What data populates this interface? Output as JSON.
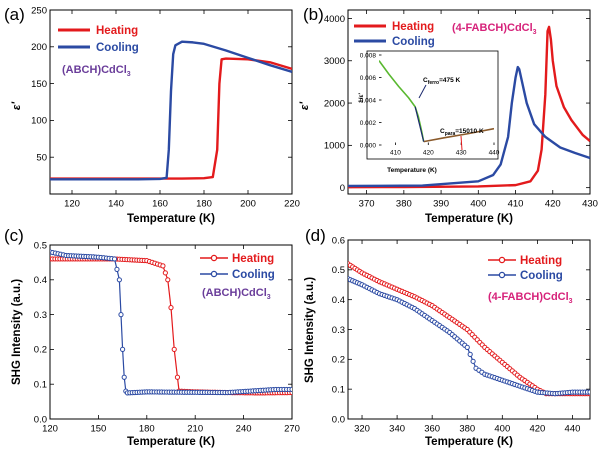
{
  "colors": {
    "heating": "#e31a1c",
    "cooling": "#2b4aa3",
    "annotation_a": "#6a3d9a",
    "annotation_b": "#d6227a",
    "inset_green": "#59b830",
    "inset_brown": "#8a5a2b",
    "inset_navy": "#1c2a6e"
  },
  "panels": {
    "a": {
      "label": "(a)",
      "xlabel": "Temperature (K)",
      "ylabel": "ε'",
      "annotation": {
        "pre": "(ABCH)CdCl",
        "sub": "3"
      }
    },
    "b": {
      "label": "(b)",
      "xlabel": "Temperature (K)",
      "ylabel": "ε'",
      "annotation": {
        "pre": "(4-FABCH)CdCl",
        "sub": "3"
      }
    },
    "c": {
      "label": "(c)",
      "xlabel": "Temperature (K)",
      "ylabel": "SHG Intensity (a.u.)",
      "annotation": {
        "pre": "(ABCH)CdCl",
        "sub": "3"
      }
    },
    "d": {
      "label": "(d)",
      "xlabel": "Temperature (K)",
      "ylabel": "SHG Intensity (a.u.)",
      "annotation": {
        "pre": "(4-FABCH)CdCl",
        "sub": "3"
      }
    }
  },
  "inset": {
    "xlabel": "Temperature (K)",
    "ylabel": "1/ε'",
    "ferro": {
      "pre": "C",
      "sub": "ferro",
      "post": "=475 K"
    },
    "para": {
      "pre": "C",
      "sub": "para",
      "post": "=15010 K"
    }
  },
  "chart_data": [
    {
      "id": "a",
      "type": "line",
      "xlim": [
        110,
        220
      ],
      "ylim": [
        0,
        250
      ],
      "xticks": [
        120,
        140,
        160,
        180,
        200,
        220
      ],
      "yticks": [
        50,
        100,
        150,
        200,
        250
      ],
      "legend": "top-left",
      "series": [
        {
          "name": "Heating",
          "color_key": "heating",
          "x": [
            110,
            150,
            170,
            180,
            184,
            186,
            187,
            188,
            190,
            200,
            210,
            220
          ],
          "y": [
            21,
            21,
            21,
            21.5,
            23,
            60,
            150,
            183,
            184,
            183,
            179,
            170
          ]
        },
        {
          "name": "Cooling",
          "color_key": "cooling",
          "x": [
            110,
            150,
            160,
            163,
            164,
            165,
            166,
            167,
            170,
            175,
            180,
            190,
            200,
            210,
            220
          ],
          "y": [
            20,
            20,
            20.5,
            22,
            60,
            140,
            190,
            202,
            207,
            206,
            204,
            195,
            185,
            175,
            166
          ]
        }
      ]
    },
    {
      "id": "b",
      "type": "line",
      "xlim": [
        365,
        430
      ],
      "ylim": [
        -150,
        4200
      ],
      "xticks": [
        370,
        380,
        390,
        400,
        410,
        420,
        430
      ],
      "yticks": [
        0,
        1000,
        2000,
        3000,
        4000
      ],
      "legend": "top-left",
      "series": [
        {
          "name": "Heating",
          "color_key": "heating",
          "x": [
            365,
            380,
            400,
            410,
            414,
            416,
            417,
            418,
            418.6,
            419,
            419.5,
            420,
            421,
            423,
            425,
            428,
            430
          ],
          "y": [
            10,
            15,
            30,
            60,
            150,
            400,
            900,
            2200,
            3700,
            3800,
            3500,
            3000,
            2400,
            1900,
            1600,
            1250,
            1100
          ]
        },
        {
          "name": "Cooling",
          "color_key": "cooling",
          "x": [
            365,
            385,
            400,
            404,
            406,
            408,
            409,
            410,
            410.6,
            411,
            412,
            413,
            415,
            418,
            422,
            426,
            430
          ],
          "y": [
            40,
            50,
            150,
            300,
            550,
            1200,
            2000,
            2600,
            2850,
            2800,
            2400,
            2000,
            1500,
            1200,
            950,
            820,
            700
          ]
        }
      ]
    },
    {
      "id": "b-inset",
      "type": "line",
      "xlim": [
        405,
        440
      ],
      "ylim": [
        0,
        0.008
      ],
      "xticks": [
        410,
        420,
        430,
        440
      ],
      "yticks": [
        0,
        0.002,
        0.004,
        0.006,
        0.008
      ],
      "series": [
        {
          "name": "",
          "color_key": "inset_green",
          "x": [
            405,
            408,
            411,
            414,
            416,
            417,
            418,
            418.6
          ],
          "y": [
            0.0075,
            0.0063,
            0.0052,
            0.0042,
            0.0034,
            0.0025,
            0.0012,
            0.0003
          ]
        },
        {
          "name": "",
          "color_key": "inset_brown",
          "x": [
            418.6,
            425,
            432,
            440
          ],
          "y": [
            0.0003,
            0.00065,
            0.001,
            0.00145
          ]
        }
      ]
    },
    {
      "id": "c",
      "type": "line",
      "xlim": [
        120,
        270
      ],
      "ylim": [
        0,
        0.5
      ],
      "xticks": [
        120,
        150,
        180,
        210,
        240,
        270
      ],
      "yticks": [
        0.0,
        0.1,
        0.2,
        0.3,
        0.4,
        0.5
      ],
      "legend": "top-right",
      "series": [
        {
          "name": "Heating",
          "color_key": "heating",
          "x": [
            120,
            140,
            160,
            180,
            190,
            193,
            195,
            197,
            199,
            200,
            210,
            230,
            250,
            270
          ],
          "y": [
            0.46,
            0.46,
            0.46,
            0.455,
            0.44,
            0.4,
            0.32,
            0.2,
            0.12,
            0.08,
            0.078,
            0.076,
            0.075,
            0.076
          ]
        },
        {
          "name": "Cooling",
          "color_key": "cooling",
          "x": [
            120,
            130,
            150,
            160,
            163,
            164,
            165,
            166,
            167,
            168,
            180,
            200,
            230,
            260,
            270
          ],
          "y": [
            0.48,
            0.47,
            0.465,
            0.46,
            0.4,
            0.3,
            0.2,
            0.12,
            0.08,
            0.075,
            0.078,
            0.077,
            0.076,
            0.085,
            0.085
          ]
        }
      ]
    },
    {
      "id": "d",
      "type": "line",
      "xlim": [
        312,
        450
      ],
      "ylim": [
        0,
        0.6
      ],
      "xticks": [
        320,
        340,
        360,
        380,
        400,
        420,
        440
      ],
      "yticks": [
        0.0,
        0.1,
        0.2,
        0.3,
        0.4,
        0.5,
        0.6
      ],
      "legend": "top-right",
      "series": [
        {
          "name": "Heating",
          "color_key": "heating",
          "x": [
            312,
            320,
            330,
            340,
            350,
            360,
            370,
            380,
            390,
            400,
            410,
            420,
            425,
            430,
            440,
            450
          ],
          "y": [
            0.52,
            0.49,
            0.46,
            0.435,
            0.41,
            0.38,
            0.34,
            0.3,
            0.24,
            0.19,
            0.14,
            0.1,
            0.085,
            0.085,
            0.085,
            0.085
          ]
        },
        {
          "name": "Cooling",
          "color_key": "cooling",
          "x": [
            312,
            320,
            330,
            340,
            350,
            360,
            370,
            380,
            385,
            390,
            400,
            410,
            420,
            430,
            440,
            450
          ],
          "y": [
            0.47,
            0.45,
            0.42,
            0.4,
            0.37,
            0.33,
            0.29,
            0.24,
            0.17,
            0.15,
            0.13,
            0.11,
            0.09,
            0.085,
            0.09,
            0.09
          ]
        }
      ]
    }
  ]
}
